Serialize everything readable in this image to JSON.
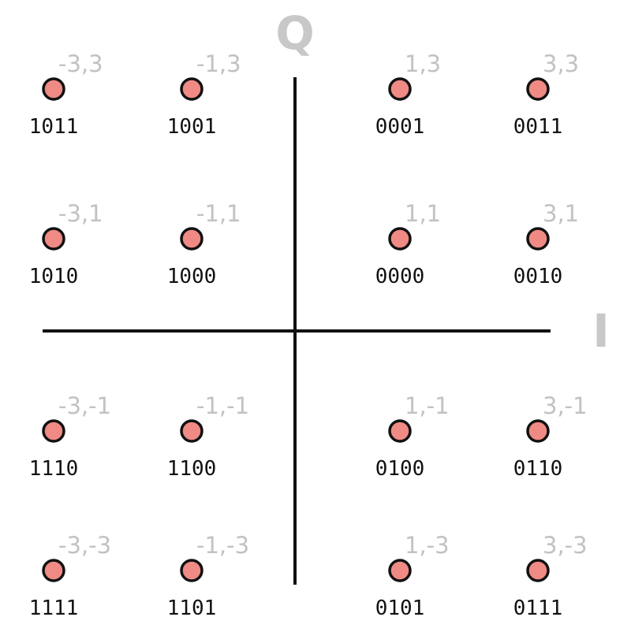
{
  "diagram": {
    "axes": {
      "horizontal_label": "I",
      "vertical_label": "Q"
    },
    "colors": {
      "dot_fill": "#f08a84",
      "dot_stroke": "#111111",
      "axis": "#111111",
      "coord_label": "#c2c2c2",
      "axis_label": "#c8c8c8"
    },
    "points": [
      {
        "i": -3,
        "q": 3,
        "coord": "-3,3",
        "bits": "1011"
      },
      {
        "i": -1,
        "q": 3,
        "coord": "-1,3",
        "bits": "1001"
      },
      {
        "i": 1,
        "q": 3,
        "coord": "1,3",
        "bits": "0001"
      },
      {
        "i": 3,
        "q": 3,
        "coord": "3,3",
        "bits": "0011"
      },
      {
        "i": -3,
        "q": 1,
        "coord": "-3,1",
        "bits": "1010"
      },
      {
        "i": -1,
        "q": 1,
        "coord": "-1,1",
        "bits": "1000"
      },
      {
        "i": 1,
        "q": 1,
        "coord": "1,1",
        "bits": "0000"
      },
      {
        "i": 3,
        "q": 1,
        "coord": "3,1",
        "bits": "0010"
      },
      {
        "i": -3,
        "q": -1,
        "coord": "-3,-1",
        "bits": "1110"
      },
      {
        "i": -1,
        "q": -1,
        "coord": "-1,-1",
        "bits": "1100"
      },
      {
        "i": 1,
        "q": -1,
        "coord": "1,-1",
        "bits": "0100"
      },
      {
        "i": 3,
        "q": -1,
        "coord": "3,-1",
        "bits": "0110"
      },
      {
        "i": -3,
        "q": -3,
        "coord": "-3,-3",
        "bits": "1111"
      },
      {
        "i": -1,
        "q": -3,
        "coord": "-1,-3",
        "bits": "1101"
      },
      {
        "i": 1,
        "q": -3,
        "coord": "1,-3",
        "bits": "0101"
      },
      {
        "i": 3,
        "q": -3,
        "coord": "3,-3",
        "bits": "0111"
      }
    ]
  }
}
